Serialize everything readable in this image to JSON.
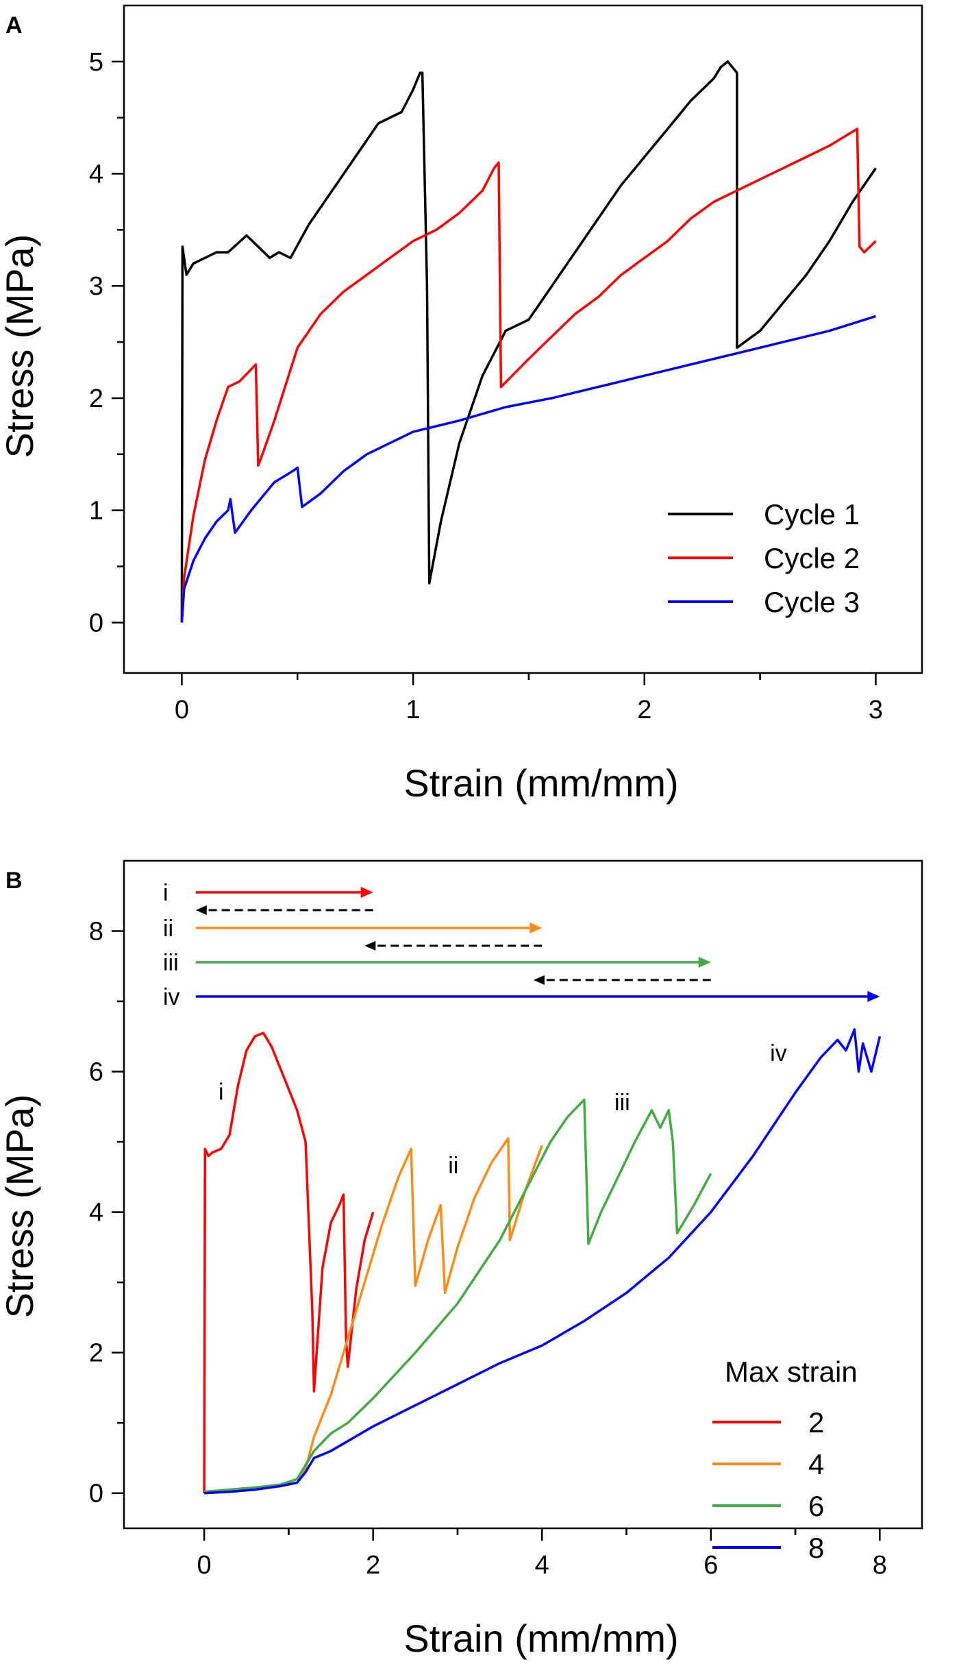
{
  "chart_data": [
    {
      "panel": "A",
      "type": "line",
      "xlabel": "Strain (mm/mm)",
      "ylabel": "Stress (MPa)",
      "xlim": [
        -0.25,
        3.2
      ],
      "ylim": [
        -0.45,
        5.5
      ],
      "xticks": [
        0,
        1,
        2,
        3
      ],
      "yticks": [
        0,
        1,
        2,
        3,
        4,
        5
      ],
      "legend_position": "bottom-right",
      "series": [
        {
          "name": "Cycle 1",
          "color": "#000000",
          "x": [
            0,
            0.003,
            0.02,
            0.05,
            0.1,
            0.15,
            0.2,
            0.28,
            0.33,
            0.38,
            0.42,
            0.47,
            0.55,
            0.65,
            0.75,
            0.85,
            0.95,
            1.0,
            1.03,
            1.04,
            1.06,
            1.07,
            1.12,
            1.2,
            1.3,
            1.4,
            1.5,
            1.6,
            1.7,
            1.8,
            1.9,
            2.0,
            2.1,
            2.2,
            2.3,
            2.33,
            2.36,
            2.4,
            2.4,
            2.5,
            2.6,
            2.7,
            2.8,
            2.9,
            3.0
          ],
          "y": [
            0,
            3.35,
            3.1,
            3.2,
            3.25,
            3.3,
            3.3,
            3.45,
            3.35,
            3.25,
            3.3,
            3.25,
            3.55,
            3.85,
            4.15,
            4.45,
            4.55,
            4.75,
            4.9,
            4.9,
            3.0,
            0.35,
            0.9,
            1.6,
            2.2,
            2.6,
            2.7,
            3.0,
            3.3,
            3.6,
            3.9,
            4.15,
            4.4,
            4.65,
            4.85,
            4.95,
            5.0,
            4.9,
            2.45,
            2.6,
            2.85,
            3.1,
            3.4,
            3.75,
            4.05
          ]
        },
        {
          "name": "Cycle 2",
          "color": "#ff0000",
          "x": [
            0,
            0.01,
            0.05,
            0.1,
            0.15,
            0.2,
            0.25,
            0.32,
            0.33,
            0.34,
            0.4,
            0.5,
            0.6,
            0.7,
            0.8,
            0.9,
            1.0,
            1.1,
            1.2,
            1.3,
            1.35,
            1.37,
            1.38,
            1.5,
            1.6,
            1.7,
            1.8,
            1.9,
            2.0,
            2.1,
            2.2,
            2.3,
            2.4,
            2.5,
            2.6,
            2.7,
            2.8,
            2.88,
            2.92,
            2.93,
            2.95,
            3.0
          ],
          "y": [
            0,
            0.4,
            0.95,
            1.45,
            1.8,
            2.1,
            2.15,
            2.3,
            1.4,
            1.45,
            1.8,
            2.45,
            2.75,
            2.95,
            3.1,
            3.25,
            3.4,
            3.5,
            3.65,
            3.85,
            4.05,
            4.1,
            2.1,
            2.35,
            2.55,
            2.75,
            2.9,
            3.1,
            3.25,
            3.4,
            3.6,
            3.75,
            3.85,
            3.95,
            4.05,
            4.15,
            4.25,
            4.35,
            4.4,
            3.35,
            3.3,
            3.4
          ]
        },
        {
          "name": "Cycle 3",
          "color": "#0000ff",
          "x": [
            0,
            0.01,
            0.05,
            0.1,
            0.15,
            0.2,
            0.21,
            0.23,
            0.3,
            0.4,
            0.48,
            0.5,
            0.52,
            0.6,
            0.7,
            0.8,
            0.9,
            1.0,
            1.2,
            1.4,
            1.6,
            1.8,
            2.0,
            2.2,
            2.4,
            2.6,
            2.8,
            3.0
          ],
          "y": [
            0,
            0.3,
            0.55,
            0.75,
            0.9,
            1.0,
            1.1,
            0.8,
            1.0,
            1.25,
            1.35,
            1.38,
            1.03,
            1.15,
            1.35,
            1.5,
            1.6,
            1.7,
            1.8,
            1.92,
            2.0,
            2.1,
            2.2,
            2.3,
            2.4,
            2.5,
            2.6,
            2.73
          ]
        }
      ]
    },
    {
      "panel": "B",
      "type": "line",
      "xlabel": "Strain (mm/mm)",
      "ylabel": "Stress (MPa)",
      "xlim": [
        -0.95,
        8.5
      ],
      "ylim": [
        -0.5,
        9.0
      ],
      "xticks": [
        0,
        2,
        4,
        6,
        8
      ],
      "yticks": [
        0,
        2,
        4,
        6,
        8
      ],
      "legend_title": "Max strain",
      "legend_position": "bottom-right",
      "annotations": [
        {
          "text": "i",
          "x": 0.2,
          "y": 5.6
        },
        {
          "text": "ii",
          "x": 2.95,
          "y": 4.55
        },
        {
          "text": "iii",
          "x": 4.95,
          "y": 5.45
        },
        {
          "text": "iv",
          "x": 6.8,
          "y": 6.15
        }
      ],
      "loading_arrows": [
        {
          "label": "i",
          "color": "#ff0000",
          "load_to": 2,
          "unload_from": 2,
          "unload_to": -0.1
        },
        {
          "label": "ii",
          "color": "#ff8c1a",
          "load_to": 4,
          "unload_from": 4,
          "unload_to": 1.9
        },
        {
          "label": "iii",
          "color": "#44aa44",
          "load_to": 6,
          "unload_from": 6,
          "unload_to": 3.9
        },
        {
          "label": "iv",
          "color": "#0000ff",
          "load_to": 8
        }
      ],
      "series": [
        {
          "name": "2",
          "color": "#ff0000",
          "x": [
            0,
            0.01,
            0.05,
            0.1,
            0.2,
            0.3,
            0.4,
            0.5,
            0.6,
            0.7,
            0.8,
            0.9,
            1.0,
            1.1,
            1.2,
            1.25,
            1.28,
            1.3,
            1.4,
            1.5,
            1.6,
            1.65,
            1.68,
            1.7,
            1.8,
            1.9,
            2.0
          ],
          "y": [
            0,
            4.9,
            4.8,
            4.85,
            4.9,
            5.1,
            5.8,
            6.3,
            6.5,
            6.55,
            6.35,
            6.05,
            5.75,
            5.45,
            5.0,
            3.5,
            2.6,
            1.45,
            3.2,
            3.85,
            4.1,
            4.25,
            2.2,
            1.8,
            2.9,
            3.6,
            4.0
          ]
        },
        {
          "name": "4",
          "color": "#ff8c1a",
          "x": [
            0,
            0.3,
            0.6,
            0.9,
            1.1,
            1.2,
            1.3,
            1.5,
            1.7,
            1.9,
            2.1,
            2.3,
            2.45,
            2.5,
            2.65,
            2.8,
            2.85,
            3.0,
            3.2,
            3.4,
            3.6,
            3.62,
            3.8,
            4.0
          ],
          "y": [
            0.02,
            0.05,
            0.08,
            0.12,
            0.2,
            0.35,
            0.8,
            1.4,
            2.2,
            3.0,
            3.8,
            4.5,
            4.9,
            2.95,
            3.6,
            4.1,
            2.85,
            3.5,
            4.2,
            4.7,
            5.05,
            3.6,
            4.3,
            4.95
          ]
        },
        {
          "name": "6",
          "color": "#44aa44",
          "x": [
            0,
            0.3,
            0.6,
            0.9,
            1.1,
            1.2,
            1.3,
            1.5,
            1.7,
            2.0,
            2.5,
            3.0,
            3.5,
            3.8,
            4.1,
            4.3,
            4.5,
            4.55,
            4.7,
            4.9,
            5.1,
            5.3,
            5.4,
            5.5,
            5.55,
            5.6,
            5.8,
            6.0
          ],
          "y": [
            0.02,
            0.05,
            0.08,
            0.12,
            0.2,
            0.4,
            0.6,
            0.85,
            1.0,
            1.35,
            2.0,
            2.7,
            3.6,
            4.3,
            5.0,
            5.35,
            5.6,
            3.55,
            4.0,
            4.5,
            5.0,
            5.45,
            5.2,
            5.45,
            5.0,
            3.7,
            4.1,
            4.55
          ]
        },
        {
          "name": "8",
          "color": "#0000ff",
          "x": [
            0,
            0.3,
            0.6,
            0.9,
            1.1,
            1.2,
            1.3,
            1.5,
            2.0,
            2.5,
            3.0,
            3.5,
            4.0,
            4.5,
            5.0,
            5.5,
            6.0,
            6.5,
            7.0,
            7.3,
            7.5,
            7.6,
            7.7,
            7.75,
            7.8,
            7.9,
            8.0
          ],
          "y": [
            0,
            0.02,
            0.05,
            0.1,
            0.15,
            0.3,
            0.5,
            0.6,
            0.95,
            1.25,
            1.55,
            1.85,
            2.1,
            2.45,
            2.85,
            3.35,
            4.0,
            4.8,
            5.7,
            6.2,
            6.45,
            6.3,
            6.6,
            6.0,
            6.4,
            6.0,
            6.5
          ]
        }
      ]
    }
  ]
}
